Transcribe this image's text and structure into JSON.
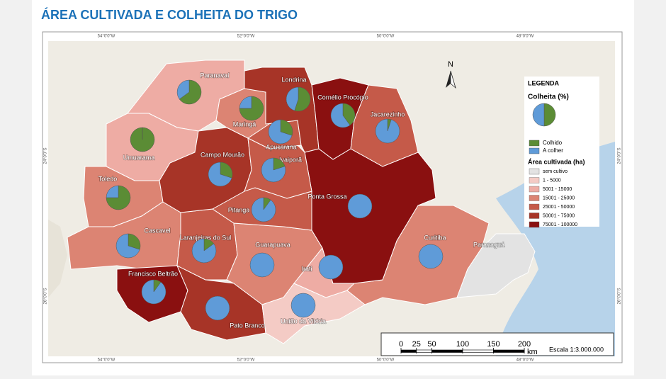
{
  "title": "ÁREA CULTIVADA E COLHEITA DO TRIGO",
  "graticule": {
    "lon": [
      "54°0'0\"W",
      "52°0'0\"W",
      "50°0'0\"W",
      "48°0'0\"W"
    ],
    "lat": [
      "24°0'0\"S",
      "26°0'0\"S"
    ]
  },
  "north": "N",
  "legend": {
    "title": "LEGENDA",
    "pie_title": "Colheita (%)",
    "pie_items": [
      {
        "label": "Colhido",
        "color": "#5b8c35"
      },
      {
        "label": "A colher",
        "color": "#5f9bd8"
      }
    ],
    "area_title": "Área cultivada (ha)",
    "area_items": [
      {
        "label": "sem cultivo",
        "color": "#e3e3e3"
      },
      {
        "label": "1 - 5000",
        "color": "#f4cbc5"
      },
      {
        "label": "5001 - 15000",
        "color": "#eeaca4"
      },
      {
        "label": "15001 - 25000",
        "color": "#dc8473"
      },
      {
        "label": "25001 - 50000",
        "color": "#c55a49"
      },
      {
        "label": "50001 - 75000",
        "color": "#a73427"
      },
      {
        "label": "75001 - 100000",
        "color": "#8a1010"
      }
    ]
  },
  "regions": [
    {
      "name": "Paranavaí",
      "class": 2,
      "colhido": 65,
      "a_colher": 35
    },
    {
      "name": "Umuarama",
      "class": 2,
      "colhido": 100,
      "a_colher": 0
    },
    {
      "name": "Toledo",
      "class": 3,
      "colhido": 75,
      "a_colher": 25
    },
    {
      "name": "Cascavel",
      "class": 3,
      "colhido": 30,
      "a_colher": 70
    },
    {
      "name": "Francisco Beltrão",
      "class": 6,
      "colhido": 10,
      "a_colher": 90
    },
    {
      "name": "Pato Branco",
      "class": 5,
      "colhido": 0,
      "a_colher": 100
    },
    {
      "name": "Laranjeiras do Sul",
      "class": 4,
      "colhido": 15,
      "a_colher": 85
    },
    {
      "name": "Guarapuava",
      "class": 3,
      "colhido": 0,
      "a_colher": 100
    },
    {
      "name": "União da Vitória",
      "class": 1,
      "colhido": 0,
      "a_colher": 100
    },
    {
      "name": "Irati",
      "class": 2,
      "colhido": 0,
      "a_colher": 100
    },
    {
      "name": "Curitiba",
      "class": 3,
      "colhido": 0,
      "a_colher": 100
    },
    {
      "name": "Paranaguá",
      "class": 0,
      "colhido": null,
      "a_colher": null
    },
    {
      "name": "Ponta Grossa",
      "class": 6,
      "colhido": 0,
      "a_colher": 100
    },
    {
      "name": "Pitanga",
      "class": 4,
      "colhido": 10,
      "a_colher": 90
    },
    {
      "name": "Campo Mourão",
      "class": 5,
      "colhido": 30,
      "a_colher": 70
    },
    {
      "name": "Ivaiporã",
      "class": 4,
      "colhido": 20,
      "a_colher": 80
    },
    {
      "name": "Apucarana",
      "class": 4,
      "colhido": 30,
      "a_colher": 70
    },
    {
      "name": "Maringá",
      "class": 3,
      "colhido": 75,
      "a_colher": 25
    },
    {
      "name": "Londrina",
      "class": 5,
      "colhido": 55,
      "a_colher": 45
    },
    {
      "name": "Cornélio Procópio",
      "class": 6,
      "colhido": 40,
      "a_colher": 60
    },
    {
      "name": "Jacarezinho",
      "class": 4,
      "colhido": 5,
      "a_colher": 95
    }
  ],
  "scale": {
    "ticks": [
      0,
      25,
      50,
      100,
      150,
      200
    ],
    "unit": "km",
    "label": "Escala 1:3.000.000"
  }
}
